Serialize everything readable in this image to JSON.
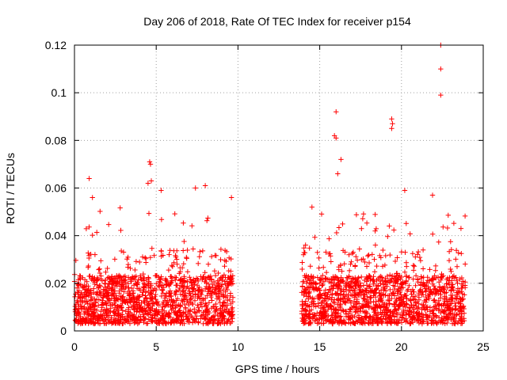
{
  "chart_data": {
    "type": "scatter",
    "title": "Day 206 of 2018, Rate Of TEC Index for receiver p154",
    "xlabel": "GPS time / hours",
    "ylabel": "ROTI / TECUs",
    "xlim": [
      0,
      25
    ],
    "ylim": [
      0,
      0.12
    ],
    "xticks": [
      0,
      5,
      10,
      15,
      20,
      25
    ],
    "yticks": [
      0,
      0.02,
      0.04,
      0.06,
      0.08,
      0.1,
      0.12
    ],
    "xtick_labels": [
      "0",
      "5",
      "10",
      "15",
      "20",
      "25"
    ],
    "ytick_labels": [
      "0",
      "0.02",
      "0.04",
      "0.06",
      "0.08",
      "0.1",
      "0.12"
    ],
    "grid": true,
    "marker": "+",
    "color": "#ff0000",
    "observation_windows": [
      [
        0,
        9.7
      ],
      [
        13.9,
        23.9
      ]
    ],
    "typical_range": [
      0.003,
      0.03
    ],
    "outliers": [
      {
        "x": 0.9,
        "y": 0.064
      },
      {
        "x": 1.1,
        "y": 0.056
      },
      {
        "x": 4.5,
        "y": 0.062
      },
      {
        "x": 4.6,
        "y": 0.071
      },
      {
        "x": 4.65,
        "y": 0.07
      },
      {
        "x": 4.7,
        "y": 0.063
      },
      {
        "x": 5.3,
        "y": 0.059
      },
      {
        "x": 7.4,
        "y": 0.06
      },
      {
        "x": 8.0,
        "y": 0.061
      },
      {
        "x": 9.6,
        "y": 0.056
      },
      {
        "x": 16.0,
        "y": 0.092
      },
      {
        "x": 15.9,
        "y": 0.082
      },
      {
        "x": 16.0,
        "y": 0.081
      },
      {
        "x": 16.3,
        "y": 0.072
      },
      {
        "x": 16.1,
        "y": 0.066
      },
      {
        "x": 19.4,
        "y": 0.089
      },
      {
        "x": 19.45,
        "y": 0.087
      },
      {
        "x": 19.4,
        "y": 0.085
      },
      {
        "x": 20.2,
        "y": 0.059
      },
      {
        "x": 21.9,
        "y": 0.057
      },
      {
        "x": 22.4,
        "y": 0.12
      },
      {
        "x": 22.4,
        "y": 0.11
      },
      {
        "x": 22.4,
        "y": 0.099
      }
    ]
  }
}
